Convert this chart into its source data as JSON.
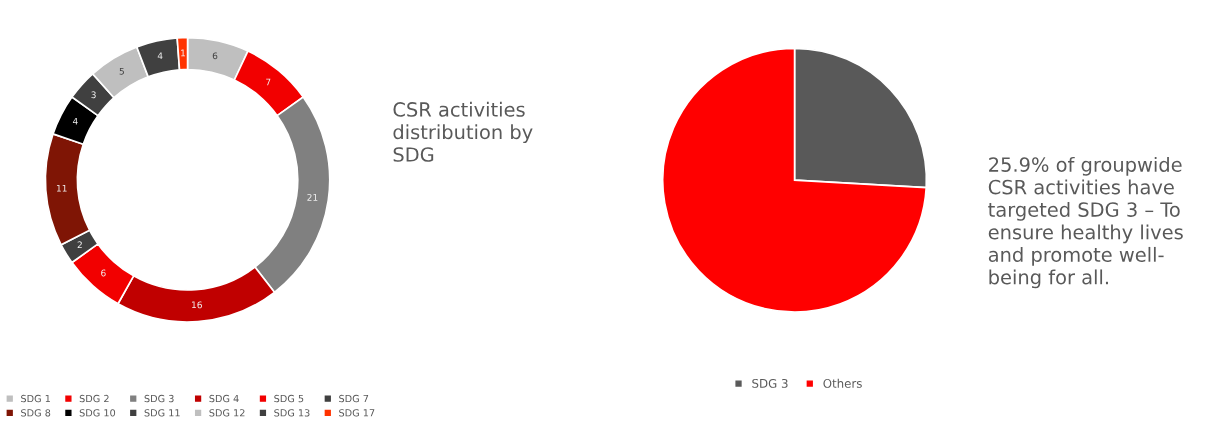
{
  "chart_data": [
    {
      "type": "donut",
      "categories": [
        "SDG 1",
        "SDG 2",
        "SDG 3",
        "SDG 4",
        "SDG 5",
        "SDG 7",
        "SDG 8",
        "SDG 10",
        "SDG 11",
        "SDG 12",
        "SDG 13",
        "SDG 17"
      ],
      "values": [
        6,
        7,
        21,
        16,
        6,
        2,
        11,
        4,
        3,
        5,
        4,
        1
      ],
      "colors": [
        "#bfbfbf",
        "#f20000",
        "#808080",
        "#c00000",
        "#f20000",
        "#404040",
        "#7f1505",
        "#000000",
        "#404040",
        "#bfbfbf",
        "#404040",
        "#ff3300"
      ],
      "data_labels": true,
      "legend": "bottom",
      "annotations": [
        "CSR activities\ndistribution by\nSDG"
      ]
    },
    {
      "type": "pie",
      "categories": [
        "SDG 3",
        "Others"
      ],
      "values": [
        25.9,
        74.1
      ],
      "colors": [
        "#595959",
        "#ff0000"
      ],
      "legend": "bottom",
      "annotations": [
        "25.9% of groupwide\nCSR activities have\ntargeted SDG 3 – To\nensure healthy lives\nand promote well-\nbeing for all."
      ]
    }
  ]
}
